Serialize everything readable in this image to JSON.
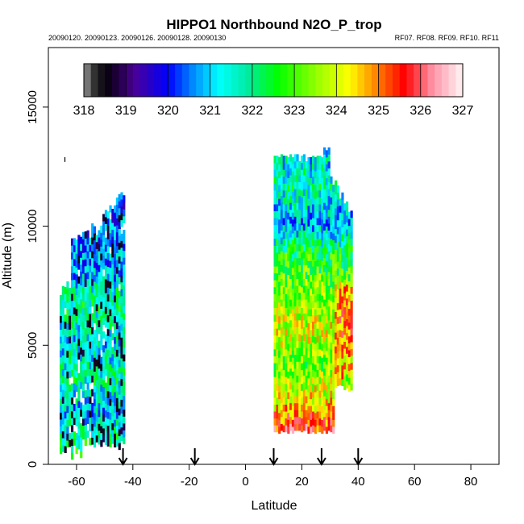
{
  "chart_data": {
    "type": "heatmap",
    "title": "HIPPO1 Northbound N2O_P_trop",
    "subtitle_left": "20090120. 20090123. 20090126. 20090128. 20090130",
    "subtitle_right": "RF07. RF08. RF09. RF10. RF11",
    "xlabel": "Latitude",
    "ylabel": "Altitude (m)",
    "xlim": [
      -70,
      90
    ],
    "ylim": [
      0,
      17500
    ],
    "x_ticks": [
      -60,
      -40,
      -20,
      0,
      20,
      40,
      60,
      80
    ],
    "y_ticks": [
      0,
      5000,
      10000,
      15000
    ],
    "colorbar": {
      "min": 318,
      "max": 327,
      "ticks": [
        318,
        319,
        320,
        321,
        322,
        323,
        324,
        325,
        326,
        327
      ],
      "placement": "top, inside plot"
    },
    "flight_start_markers_latitude": [
      -43.5,
      -18,
      10,
      27,
      40
    ],
    "curtains": [
      {
        "lat_range": [
          -66,
          -43
        ],
        "alt_range": [
          200,
          11600
        ],
        "dominant_range": [
          318.5,
          324.5
        ],
        "mean_profile": [
          {
            "alt": 500,
            "value": 322.3
          },
          {
            "alt": 2000,
            "value": 321.0
          },
          {
            "alt": 3500,
            "value": 321.8
          },
          {
            "alt": 5000,
            "value": 321.2
          },
          {
            "alt": 6500,
            "value": 322.0
          },
          {
            "alt": 8000,
            "value": 320.8
          },
          {
            "alt": 10000,
            "value": 320.5
          },
          {
            "alt": 11500,
            "value": 320.2
          }
        ]
      },
      {
        "lat_range": [
          10,
          38
        ],
        "alt_range": [
          1300,
          13300
        ],
        "dominant_range": [
          320,
          326.5
        ],
        "mean_profile": [
          {
            "alt": 1500,
            "value": 325.5
          },
          {
            "alt": 2500,
            "value": 324.3
          },
          {
            "alt": 4000,
            "value": 323.2
          },
          {
            "alt": 5500,
            "value": 324.0
          },
          {
            "alt": 7000,
            "value": 323.4
          },
          {
            "alt": 8500,
            "value": 322.6
          },
          {
            "alt": 10000,
            "value": 320.8
          },
          {
            "alt": 11500,
            "value": 321.8
          },
          {
            "alt": 12700,
            "value": 321.2
          }
        ]
      }
    ],
    "grid": false,
    "legend": "colorbar top"
  }
}
